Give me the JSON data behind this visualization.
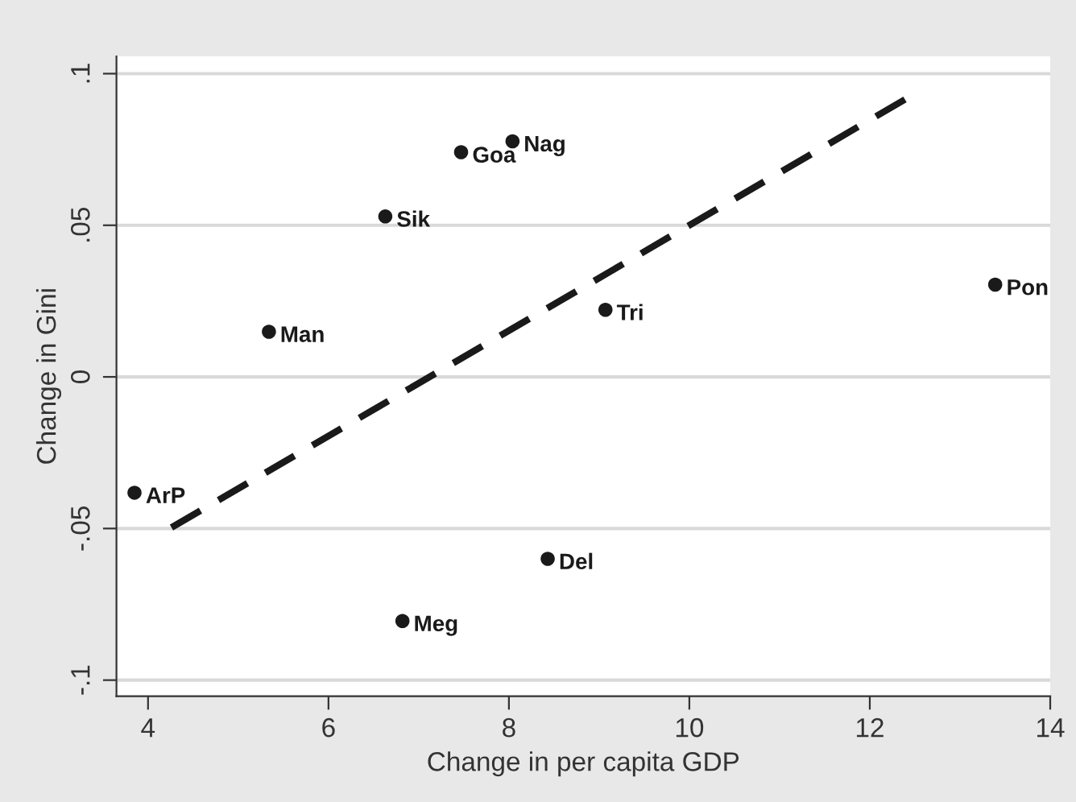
{
  "chart_data": {
    "type": "scatter",
    "xlabel": "Change in per capita GDP",
    "ylabel": "Change in Gini",
    "xlim": [
      3.65,
      14
    ],
    "ylim": [
      -0.1053,
      0.1057
    ],
    "xticks": [
      4,
      6,
      8,
      10,
      12,
      14
    ],
    "yticks": [
      {
        "value": -0.1,
        "label": "-.1"
      },
      {
        "value": -0.05,
        "label": "-.05"
      },
      {
        "value": 0,
        "label": "0"
      },
      {
        "value": 0.05,
        "label": ".05"
      },
      {
        "value": 0.1,
        "label": ".1"
      }
    ],
    "grid": "y",
    "legend": false,
    "series": [
      {
        "color": "#1a1a1a",
        "marker": "circle",
        "x": [
          3.85,
          5.34,
          6.63,
          7.47,
          8.04,
          6.82,
          9.07,
          13.39,
          8.43
        ],
        "values": [
          -0.0382,
          0.0149,
          0.0529,
          0.0741,
          0.0777,
          -0.0805,
          0.0221,
          0.0304,
          -0.06
        ]
      },
      {
        "type": "line",
        "color": "#1a1a1a",
        "line_style": "dashed",
        "marker": "none",
        "x": [
          4.26,
          12.39
        ],
        "values": [
          -0.0497,
          0.0915
        ]
      }
    ],
    "annotations": [
      {
        "text": "ArP",
        "x": 3.85,
        "y": -0.0382
      },
      {
        "text": "Man",
        "x": 5.34,
        "y": 0.0149
      },
      {
        "text": "Sik",
        "x": 6.63,
        "y": 0.0529
      },
      {
        "text": "Goa",
        "x": 7.47,
        "y": 0.0741
      },
      {
        "text": "Nag",
        "x": 8.04,
        "y": 0.0777
      },
      {
        "text": "Meg",
        "x": 6.82,
        "y": -0.0805
      },
      {
        "text": "Tri",
        "x": 9.07,
        "y": 0.0221
      },
      {
        "text": "Pon",
        "x": 13.39,
        "y": 0.0304
      },
      {
        "text": "Del",
        "x": 8.43,
        "y": -0.06
      }
    ]
  }
}
